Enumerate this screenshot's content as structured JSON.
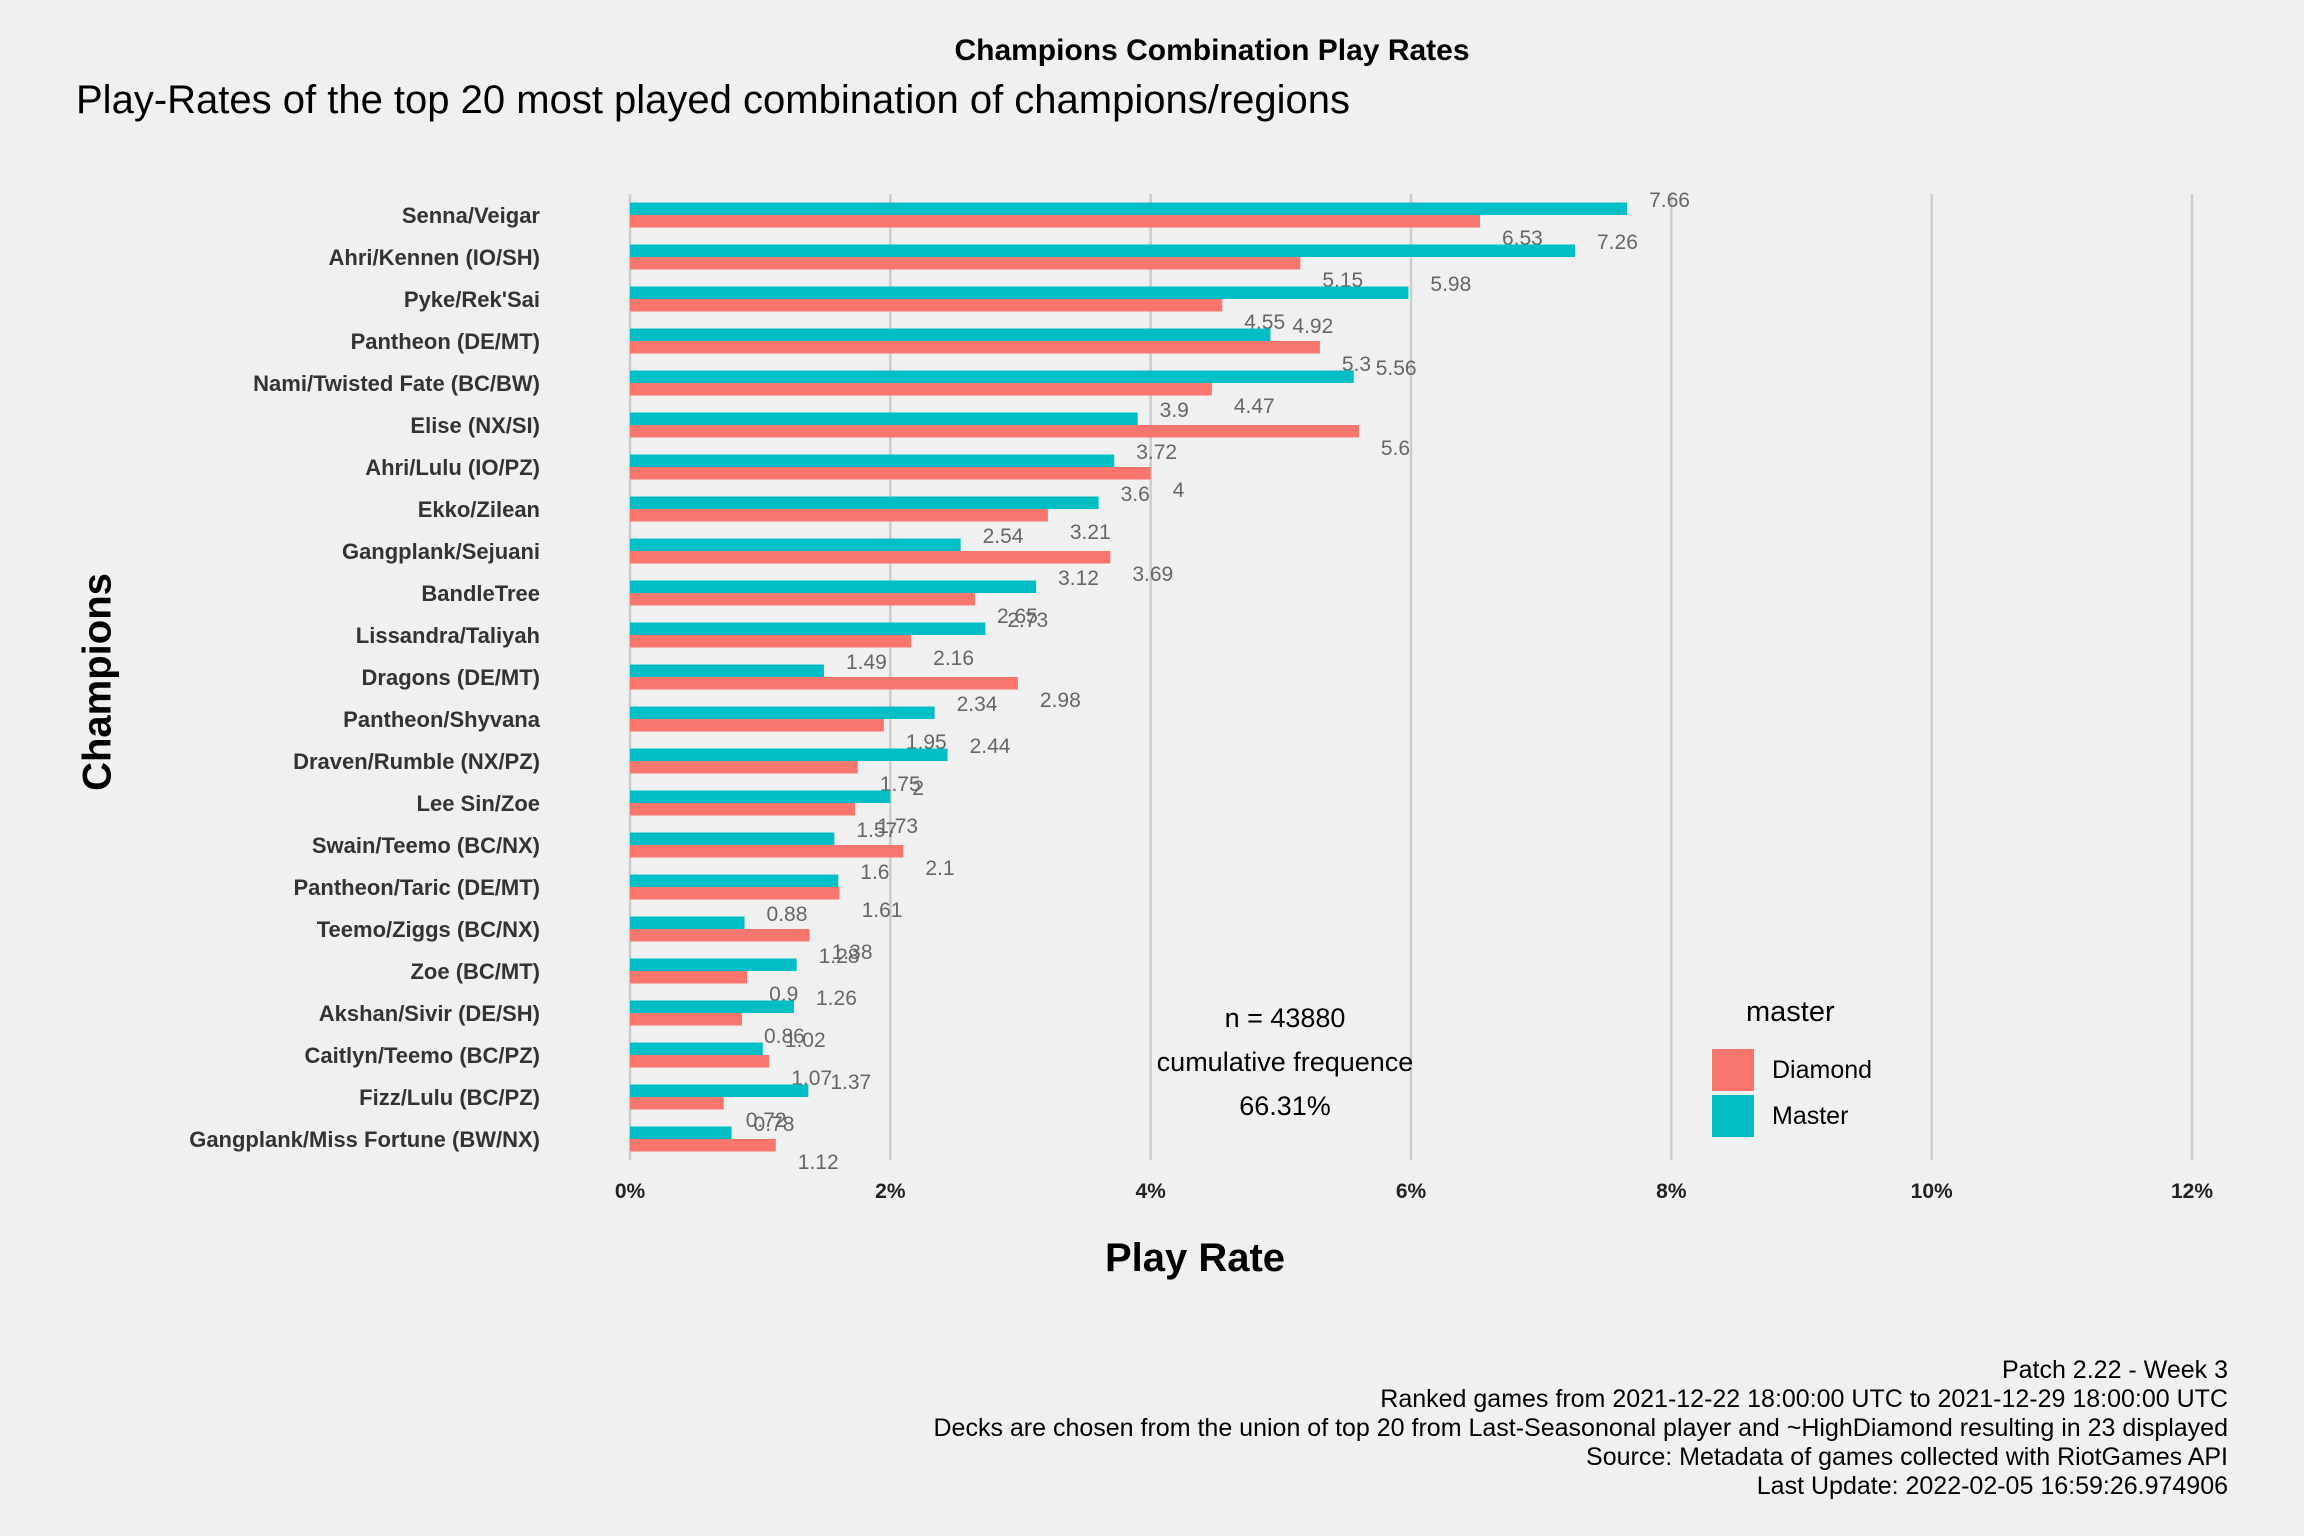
{
  "title": "Champions Combination Play Rates",
  "subtitle": "Play-Rates of the top 20 most played combination of champions/regions",
  "xlabel": "Play Rate",
  "ylabel": "Champions",
  "legend": {
    "title": "master",
    "items": [
      {
        "label": "Diamond",
        "color": "#F8766D"
      },
      {
        "label": "Master",
        "color": "#00BFC4"
      }
    ]
  },
  "annotation": {
    "n": "n = 43880",
    "label": "cumulative frequence",
    "value": "66.31%"
  },
  "caption": [
    "Patch 2.22 - Week 3",
    "Ranked games from 2021-12-22 18:00:00 UTC to 2021-12-29 18:00:00 UTC",
    "Decks are chosen from the union of top 20 from Last-Seasononal player and ~HighDiamond resulting in 23 displayed",
    "Source: Metadata of games collected with RiotGames API",
    "Last Update: 2022-02-05 16:59:26.974906"
  ],
  "chart_data": {
    "type": "bar",
    "orientation": "horizontal",
    "categories": [
      "Senna/Veigar",
      "Ahri/Kennen (IO/SH)",
      "Pyke/Rek'Sai",
      "Pantheon (DE/MT)",
      "Nami/Twisted Fate (BC/BW)",
      "Elise (NX/SI)",
      "Ahri/Lulu (IO/PZ)",
      "Ekko/Zilean",
      "Gangplank/Sejuani",
      "BandleTree",
      "Lissandra/Taliyah",
      "Dragons (DE/MT)",
      "Pantheon/Shyvana",
      "Draven/Rumble (NX/PZ)",
      "Lee Sin/Zoe",
      "Swain/Teemo (BC/NX)",
      "Pantheon/Taric (DE/MT)",
      "Teemo/Ziggs (BC/NX)",
      "Zoe (BC/MT)",
      "Akshan/Sivir (DE/SH)",
      "Caitlyn/Teemo (BC/PZ)",
      "Fizz/Lulu (BC/PZ)",
      "Gangplank/Miss Fortune (BW/NX)"
    ],
    "series": [
      {
        "name": "Master",
        "color": "#00BFC4",
        "values": [
          7.66,
          7.26,
          5.98,
          4.92,
          5.56,
          3.9,
          3.72,
          3.6,
          2.54,
          3.12,
          2.73,
          1.49,
          2.34,
          2.44,
          2,
          1.57,
          1.6,
          0.88,
          1.28,
          1.26,
          1.02,
          1.37,
          0.78
        ],
        "labels": [
          "7.66",
          "7.26",
          "5.98",
          "4.92",
          "5.56",
          "3.9",
          "3.72",
          "3.6",
          "2.54",
          "3.12",
          "2.73",
          "1.49",
          "2.34",
          "2.44",
          "2",
          "1.57",
          "1.6",
          "0.88",
          "1.28",
          "1.26",
          "1.02",
          "1.37",
          "0.78"
        ]
      },
      {
        "name": "Diamond",
        "color": "#F8766D",
        "values": [
          6.53,
          5.15,
          4.55,
          5.3,
          4.47,
          5.6,
          4,
          3.21,
          3.69,
          2.65,
          2.16,
          2.98,
          1.95,
          1.75,
          1.73,
          2.1,
          1.61,
          1.38,
          0.9,
          0.86,
          1.07,
          0.72,
          1.12
        ],
        "labels": [
          "6.53",
          "5.15",
          "4.55",
          "5.3",
          "4.47",
          "5.6",
          "4",
          "3.21",
          "3.69",
          "2.65",
          "2.16",
          "2.98",
          "1.95",
          "1.75",
          "1.73",
          "2.1",
          "1.61",
          "1.38",
          "0.9",
          "0.86",
          "1.07",
          "0.72",
          "1.12"
        ]
      }
    ],
    "xlim": [
      0,
      12
    ],
    "xticks": [
      "0%",
      "2%",
      "4%",
      "6%",
      "8%",
      "10%",
      "12%"
    ],
    "grid": "vertical major",
    "legend_position": "bottom-right"
  }
}
